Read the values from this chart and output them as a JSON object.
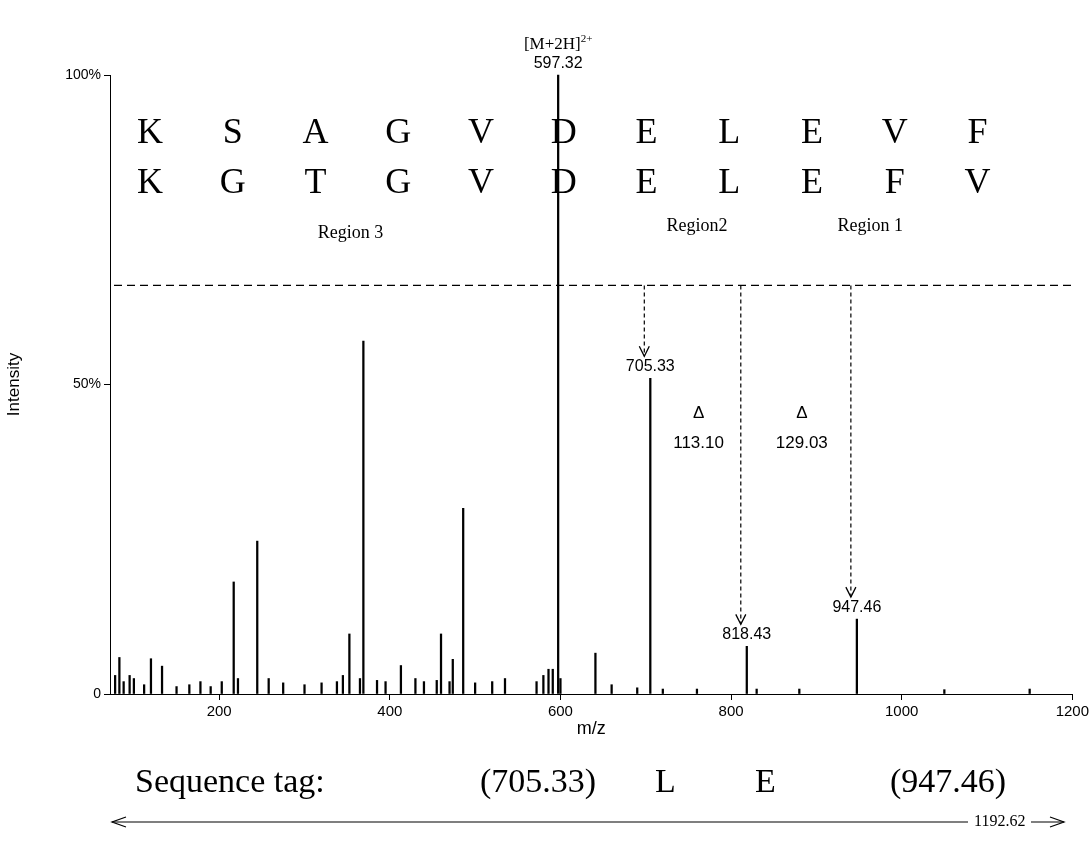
{
  "chart_data": {
    "type": "bar",
    "xlabel": "m/z",
    "ylabel": "Intensity",
    "x": [
      78,
      83,
      88,
      95,
      100,
      112,
      120,
      133,
      150,
      165,
      178,
      190,
      203,
      217,
      222,
      244.6,
      258,
      275,
      300,
      320,
      338,
      345,
      352.6,
      365,
      369,
      385,
      395,
      413,
      430,
      440,
      455,
      460,
      470,
      473.8,
      486,
      500,
      520,
      535,
      572,
      580,
      586,
      591,
      597.32,
      600,
      641,
      660,
      690,
      705.33,
      720,
      760,
      818.43,
      830,
      880,
      947.46,
      1050,
      1150
    ],
    "values": [
      3,
      5.9,
      2,
      3,
      2.5,
      1.5,
      5.7,
      4.5,
      1.2,
      1.5,
      2,
      1.2,
      2,
      18.1,
      2.5,
      24.7,
      2.5,
      1.8,
      1.5,
      1.8,
      2,
      3,
      9.7,
      2.5,
      57,
      2.2,
      2,
      4.6,
      2.5,
      2,
      2.2,
      9.7,
      2,
      5.6,
      30,
      1.8,
      2,
      2.5,
      2,
      3,
      4,
      4,
      100,
      2.5,
      6.6,
      1.5,
      1,
      51,
      0.8,
      0.8,
      7.7,
      0.8,
      0.8,
      12.1,
      0.7,
      0.8
    ],
    "color": "#000000",
    "xlim": [
      72,
      1200
    ],
    "xticks": [
      200,
      400,
      600,
      800,
      1000,
      1200
    ],
    "ylim": [
      0,
      100
    ],
    "yticks": [
      {
        "value": 0,
        "label": "0"
      },
      {
        "value": 50,
        "label": "50%"
      },
      {
        "value": 100,
        "label": "100%"
      }
    ],
    "grid": false,
    "legend": false,
    "ref_lines": [
      {
        "axis": "y",
        "value": 66,
        "line_style": "dashed"
      }
    ],
    "annotations": [
      "K S A G V D E L E V F",
      "K G T G V D E L E F V",
      "[M+2H]$^{2+}$",
      "Region 3",
      "Region2",
      "Region 1",
      "Δ\n113.10",
      "Δ\n129.03",
      "Sequence tag: (705.33) L E (947.46)",
      "1192.62",
      {
        "text": "597.32",
        "x": 597.32,
        "y": 100
      },
      {
        "text": "705.33",
        "x": 705.33,
        "y": 51
      },
      {
        "text": "818.43",
        "x": 818.43,
        "y": 7.7
      },
      {
        "text": "947.46",
        "x": 947.46,
        "y": 12.1
      }
    ]
  }
}
